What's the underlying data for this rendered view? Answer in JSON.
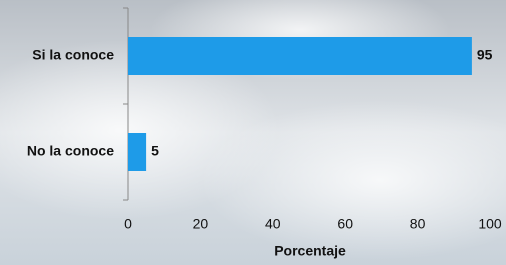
{
  "chart_data": {
    "type": "hbar",
    "categories": [
      "Si la conoce",
      "No la conoce"
    ],
    "values": [
      95,
      5
    ],
    "color": "#1e9be8",
    "x_label": "Porcentaje",
    "xlim": [
      0,
      100
    ],
    "xticks": [
      0,
      20,
      40,
      60,
      80,
      100
    ]
  }
}
